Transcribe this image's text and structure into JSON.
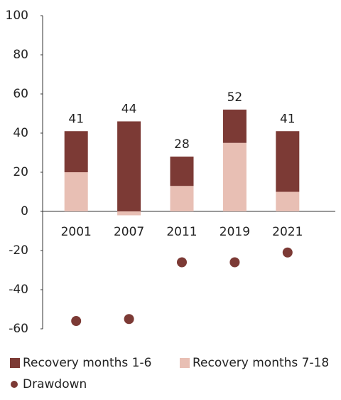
{
  "chart_data": {
    "type": "bar",
    "categories": [
      "2001",
      "2007",
      "2011",
      "2019",
      "2021"
    ],
    "series": [
      {
        "name": "Recovery months 7-18",
        "color": "#e8bfb4",
        "values": [
          20,
          -2,
          13,
          35,
          10
        ]
      },
      {
        "name": "Recovery months 1-6",
        "color": "#7c3a35",
        "values": [
          21,
          46,
          15,
          17,
          31
        ]
      },
      {
        "name": "Drawdown",
        "color": "#7c3a35",
        "type": "scatter",
        "values": [
          -56,
          -55,
          -26,
          -26,
          -21
        ]
      }
    ],
    "totals": [
      41,
      44,
      28,
      52,
      41
    ],
    "ylim": [
      -60,
      100
    ],
    "yticks": [
      -60,
      -40,
      -20,
      0,
      20,
      40,
      60,
      80,
      100
    ],
    "grid": false
  }
}
